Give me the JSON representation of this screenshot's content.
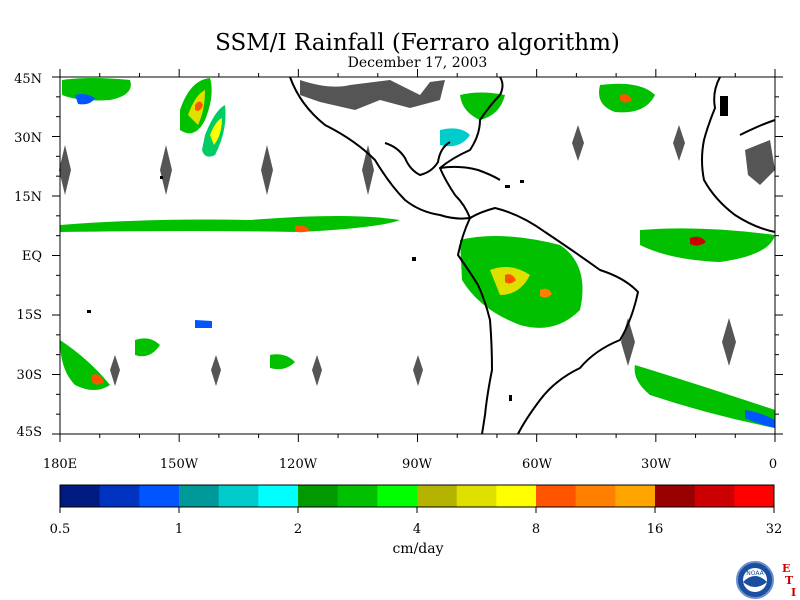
{
  "title": "SSM/I Rainfall (Ferraro algorithm)",
  "date": "December 17, 2003",
  "map": {
    "lon_range": [
      180,
      360
    ],
    "lat_range": [
      -45,
      45
    ],
    "lat_labels": [
      "45N",
      "30N",
      "15N",
      "EQ",
      "15S",
      "30S",
      "45S"
    ],
    "lon_labels": [
      "180E",
      "150W",
      "120W",
      "90W",
      "60W",
      "30W",
      "0"
    ],
    "land_color": "#000000",
    "missing_color": "#555555"
  },
  "colorbar": {
    "units": "cm/day",
    "labels": [
      "0.5",
      "1",
      "2",
      "4",
      "8",
      "16",
      "32"
    ],
    "colors": [
      "#001a80",
      "#0033bf",
      "#0055ff",
      "#009999",
      "#00cccc",
      "#00ffff",
      "#009900",
      "#00c000",
      "#00ff00",
      "#b3b300",
      "#e0e000",
      "#ffff00",
      "#ff5500",
      "#ff8000",
      "#ffa500",
      "#990000",
      "#cc0000",
      "#ff0000"
    ]
  },
  "logo": {
    "label": "NOAA",
    "letters": [
      "E",
      "T",
      "I"
    ],
    "letter_color": "#cc0000"
  }
}
